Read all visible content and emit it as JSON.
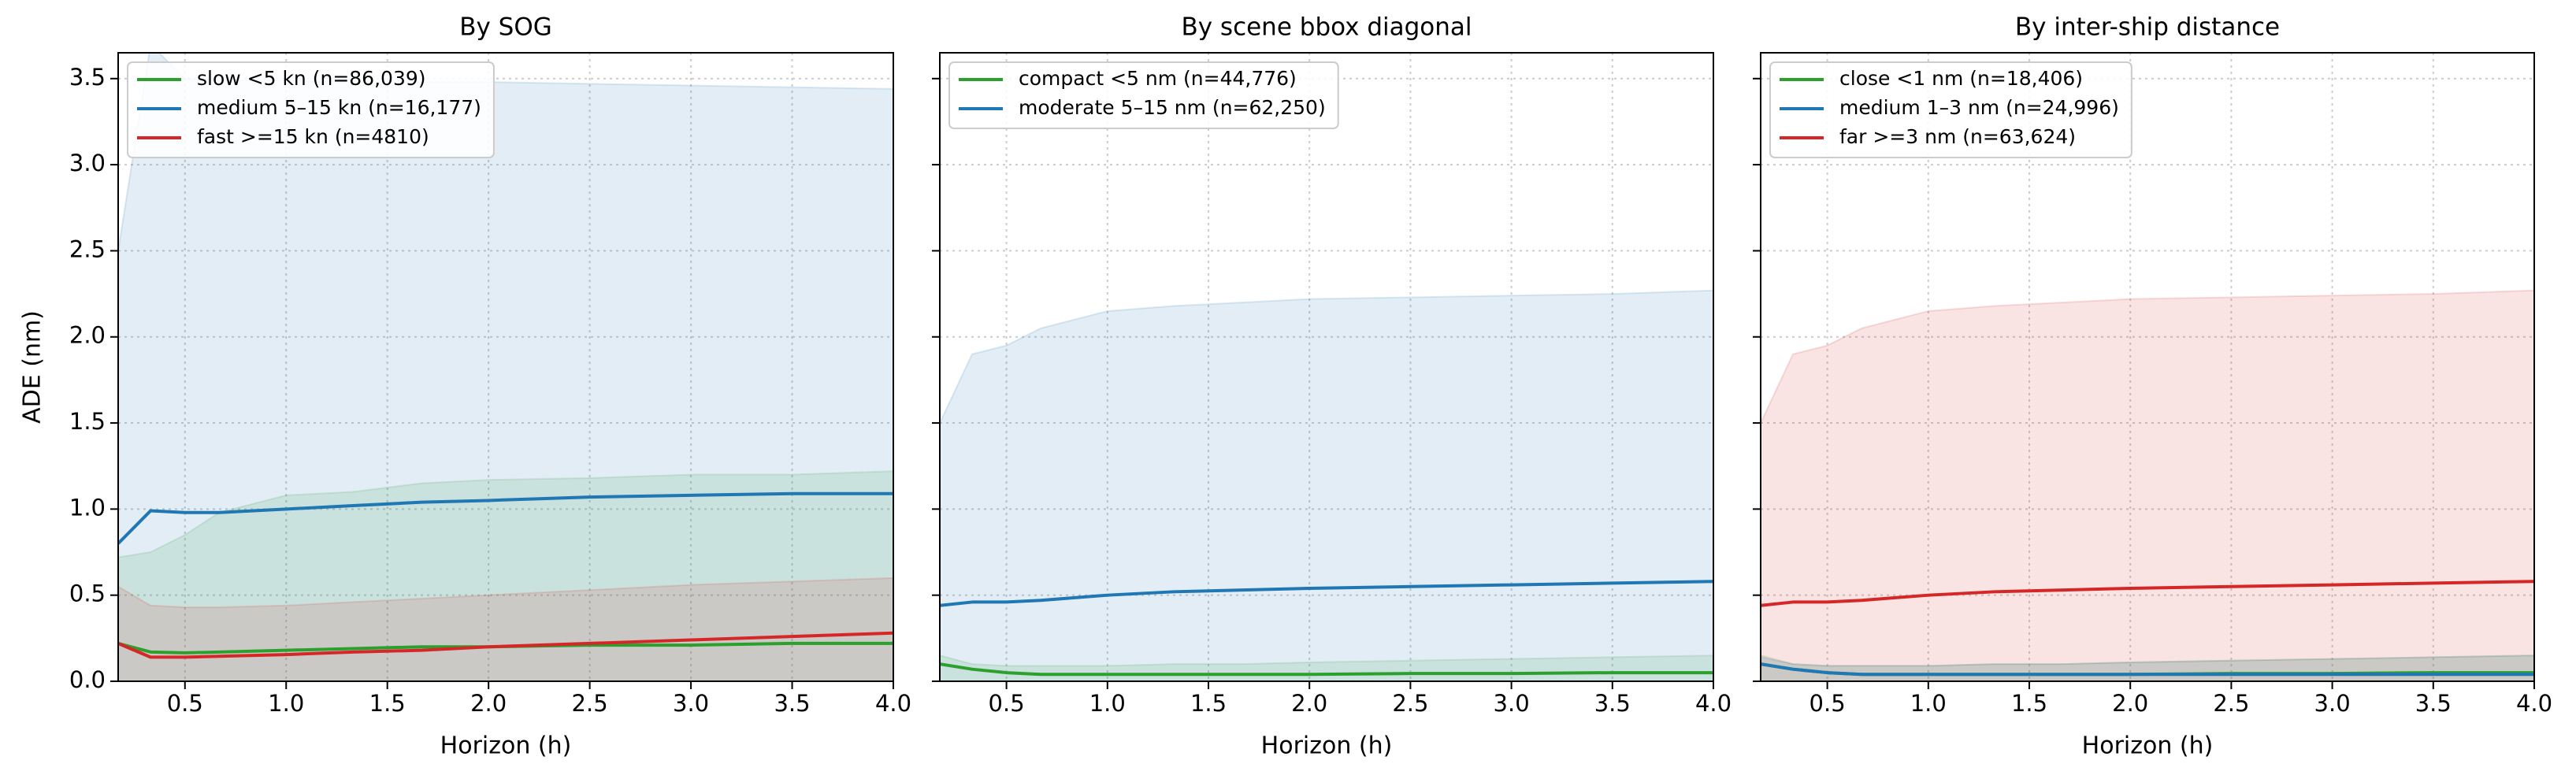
{
  "chart_data": [
    {
      "type": "line",
      "title": "By SOG",
      "xlabel": "Horizon (h)",
      "ylabel": "ADE (nm)",
      "show_ytick_labels": true,
      "x": [
        0.17,
        0.33,
        0.5,
        0.67,
        1.0,
        1.33,
        1.67,
        2.0,
        2.5,
        3.0,
        3.5,
        4.0
      ],
      "xlim": [
        0.17,
        4.0
      ],
      "xticks": [
        0.5,
        {
          "value": 1.0,
          "label": "1.0"
        },
        1.5,
        {
          "value": 2.0,
          "label": "2.0"
        },
        2.5,
        {
          "value": 3.0,
          "label": "3.0"
        },
        3.5,
        {
          "value": 4.0,
          "label": "4.0"
        }
      ],
      "ylim": [
        0,
        3.65
      ],
      "yticks": [
        {
          "value": 0,
          "label": "0.0"
        },
        0.5,
        {
          "value": 1.0,
          "label": "1.0"
        },
        1.5,
        {
          "value": 2.0,
          "label": "2.0"
        },
        2.5,
        {
          "value": 3.0,
          "label": "3.0"
        },
        3.5
      ],
      "grid": true,
      "legend": "upper left",
      "series": [
        {
          "name": "slow <5 kn (n=86,039)",
          "color": "#2ca02c",
          "values": [
            0.22,
            0.17,
            0.165,
            0.17,
            0.18,
            0.19,
            0.2,
            0.2,
            0.21,
            0.21,
            0.22,
            0.22
          ],
          "upper": [
            0.72,
            0.75,
            0.85,
            0.98,
            1.08,
            1.1,
            1.15,
            1.17,
            1.18,
            1.2,
            1.2,
            1.22
          ]
        },
        {
          "name": "medium 5–15 kn (n=16,177)",
          "color": "#1f77b4",
          "values": [
            0.8,
            0.99,
            0.98,
            0.98,
            1.0,
            1.02,
            1.04,
            1.05,
            1.07,
            1.08,
            1.09,
            1.09
          ],
          "upper": [
            2.5,
            3.7,
            3.5,
            3.49,
            3.49,
            3.48,
            3.48,
            3.48,
            3.47,
            3.46,
            3.45,
            3.44
          ]
        },
        {
          "name": "fast >=15 kn (n=4810)",
          "color": "#d62728",
          "values": [
            0.22,
            0.14,
            0.14,
            0.145,
            0.155,
            0.17,
            0.18,
            0.2,
            0.22,
            0.24,
            0.26,
            0.28
          ],
          "upper": [
            0.55,
            0.44,
            0.43,
            0.43,
            0.44,
            0.46,
            0.48,
            0.5,
            0.53,
            0.56,
            0.58,
            0.6
          ]
        }
      ]
    },
    {
      "type": "line",
      "title": "By scene bbox diagonal",
      "xlabel": "Horizon (h)",
      "show_ytick_labels": false,
      "x": [
        0.17,
        0.33,
        0.5,
        0.67,
        1.0,
        1.33,
        1.67,
        2.0,
        2.5,
        3.0,
        3.5,
        4.0
      ],
      "xlim": [
        0.17,
        4.0
      ],
      "xticks": [
        0.5,
        {
          "value": 1.0,
          "label": "1.0"
        },
        1.5,
        {
          "value": 2.0,
          "label": "2.0"
        },
        2.5,
        {
          "value": 3.0,
          "label": "3.0"
        },
        3.5,
        {
          "value": 4.0,
          "label": "4.0"
        }
      ],
      "ylim": [
        0,
        3.65
      ],
      "yticks": [
        0,
        0.5,
        1.0,
        1.5,
        2.0,
        2.5,
        3.0,
        3.5
      ],
      "grid": true,
      "legend": "upper left",
      "series": [
        {
          "name": "compact <5 nm (n=44,776)",
          "color": "#2ca02c",
          "values": [
            0.1,
            0.07,
            0.05,
            0.04,
            0.04,
            0.04,
            0.04,
            0.04,
            0.045,
            0.045,
            0.05,
            0.05
          ],
          "upper": [
            0.15,
            0.1,
            0.09,
            0.09,
            0.09,
            0.1,
            0.1,
            0.11,
            0.12,
            0.13,
            0.14,
            0.15
          ]
        },
        {
          "name": "moderate 5–15 nm (n=62,250)",
          "color": "#1f77b4",
          "values": [
            0.44,
            0.46,
            0.46,
            0.47,
            0.5,
            0.52,
            0.53,
            0.54,
            0.55,
            0.56,
            0.57,
            0.58
          ],
          "upper": [
            1.5,
            1.9,
            1.95,
            2.05,
            2.15,
            2.18,
            2.2,
            2.22,
            2.23,
            2.24,
            2.25,
            2.27
          ]
        }
      ]
    },
    {
      "type": "line",
      "title": "By inter-ship distance",
      "xlabel": "Horizon (h)",
      "show_ytick_labels": false,
      "x": [
        0.17,
        0.33,
        0.5,
        0.67,
        1.0,
        1.33,
        1.67,
        2.0,
        2.5,
        3.0,
        3.5,
        4.0
      ],
      "xlim": [
        0.17,
        4.0
      ],
      "xticks": [
        0.5,
        {
          "value": 1.0,
          "label": "1.0"
        },
        1.5,
        {
          "value": 2.0,
          "label": "2.0"
        },
        2.5,
        {
          "value": 3.0,
          "label": "3.0"
        },
        3.5,
        {
          "value": 4.0,
          "label": "4.0"
        }
      ],
      "ylim": [
        0,
        3.65
      ],
      "yticks": [
        0,
        0.5,
        1.0,
        1.5,
        2.0,
        2.5,
        3.0,
        3.5
      ],
      "grid": true,
      "legend": "upper left",
      "series": [
        {
          "name": "close <1 nm (n=18,406)",
          "color": "#2ca02c",
          "values": [
            0.1,
            0.07,
            0.05,
            0.04,
            0.04,
            0.04,
            0.04,
            0.04,
            0.045,
            0.045,
            0.05,
            0.05
          ],
          "upper": [
            0.15,
            0.1,
            0.09,
            0.09,
            0.09,
            0.1,
            0.1,
            0.11,
            0.12,
            0.13,
            0.14,
            0.15
          ]
        },
        {
          "name": "medium 1–3 nm (n=24,996)",
          "color": "#1f77b4",
          "values": [
            0.1,
            0.07,
            0.05,
            0.04,
            0.04,
            0.04,
            0.04,
            0.04,
            0.04,
            0.04,
            0.04,
            0.04
          ],
          "upper": [
            0.14,
            0.1,
            0.09,
            0.09,
            0.09,
            0.1,
            0.1,
            0.11,
            0.12,
            0.13,
            0.14,
            0.15
          ]
        },
        {
          "name": "far >=3 nm (n=63,624)",
          "color": "#d62728",
          "values": [
            0.44,
            0.46,
            0.46,
            0.47,
            0.5,
            0.52,
            0.53,
            0.54,
            0.55,
            0.56,
            0.57,
            0.58
          ],
          "upper": [
            1.5,
            1.9,
            1.95,
            2.05,
            2.15,
            2.18,
            2.2,
            2.22,
            2.23,
            2.24,
            2.25,
            2.27
          ]
        }
      ]
    }
  ]
}
